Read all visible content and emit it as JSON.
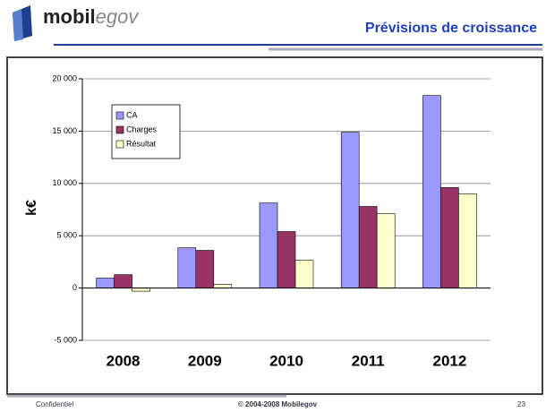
{
  "header": {
    "logo": {
      "bold": "mobil",
      "light": "egov"
    },
    "title": "Prévisions de croissance"
  },
  "footer": {
    "left": "Confidentiel",
    "center": "© 2004-2008 Mobilegov",
    "page": "23"
  },
  "chart_data": {
    "type": "bar",
    "y_label": "k€",
    "categories": [
      "2008",
      "2009",
      "2010",
      "2011",
      "2012"
    ],
    "series": [
      {
        "name": "CA",
        "color": "#9999ff",
        "values": [
          950,
          3850,
          8130,
          14900,
          18400
        ]
      },
      {
        "name": "Charges",
        "color": "#993366",
        "values": [
          1280,
          3600,
          5400,
          7800,
          9600
        ]
      },
      {
        "name": "Résultat",
        "color": "#ffffcc",
        "values": [
          -300,
          350,
          2650,
          7100,
          9000
        ]
      }
    ],
    "ylim": [
      -5000,
      20000
    ],
    "yticks": [
      {
        "value": -5000,
        "label": "-5 000"
      },
      0,
      {
        "value": 5000,
        "label": "5 000"
      },
      {
        "value": 10000,
        "label": "10 000"
      },
      {
        "value": 15000,
        "label": "15 000"
      },
      {
        "value": 20000,
        "label": "20 000"
      }
    ],
    "grid": true,
    "legend": "top-left"
  }
}
